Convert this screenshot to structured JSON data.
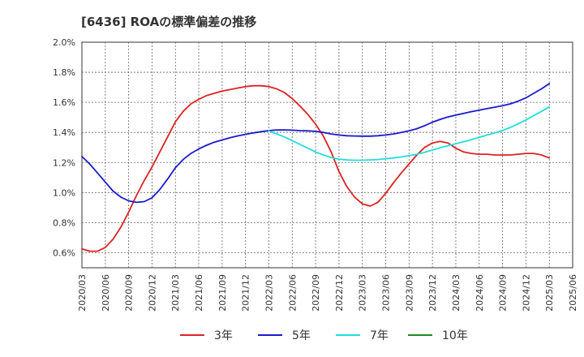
{
  "chart_data": {
    "type": "line",
    "title": "[6436]  ROAの標準偏差の推移",
    "xlabel": "",
    "ylabel": "",
    "ylim": [
      0.5,
      2.0
    ],
    "y_ticks": [
      0.6,
      0.8,
      1.0,
      1.2,
      1.4,
      1.6,
      1.8,
      2.0
    ],
    "y_tick_labels": [
      "0.6%",
      "0.8%",
      "1.0%",
      "1.2%",
      "1.4%",
      "1.6%",
      "1.8%",
      "2.0%"
    ],
    "x_ticks": [
      "2020/03",
      "2020/06",
      "2020/09",
      "2020/12",
      "2021/03",
      "2021/06",
      "2021/09",
      "2021/12",
      "2022/03",
      "2022/06",
      "2022/09",
      "2022/12",
      "2023/03",
      "2023/06",
      "2023/09",
      "2023/12",
      "2024/03",
      "2024/06",
      "2024/09",
      "2024/12",
      "2025/03",
      "2025/06"
    ],
    "grid": true,
    "legend_position": "bottom",
    "series": [
      {
        "name": "3年",
        "color": "#dd2222",
        "points": [
          [
            "2020/03",
            0.625
          ],
          [
            "2020/04",
            0.61
          ],
          [
            "2020/05",
            0.61
          ],
          [
            "2020/06",
            0.635
          ],
          [
            "2020/07",
            0.69
          ],
          [
            "2020/08",
            0.77
          ],
          [
            "2020/09",
            0.87
          ],
          [
            "2020/10",
            0.98
          ],
          [
            "2020/11",
            1.08
          ],
          [
            "2020/12",
            1.17
          ],
          [
            "2021/01",
            1.27
          ],
          [
            "2021/02",
            1.37
          ],
          [
            "2021/03",
            1.47
          ],
          [
            "2021/04",
            1.54
          ],
          [
            "2021/05",
            1.59
          ],
          [
            "2021/06",
            1.62
          ],
          [
            "2021/07",
            1.645
          ],
          [
            "2021/08",
            1.66
          ],
          [
            "2021/09",
            1.675
          ],
          [
            "2021/10",
            1.685
          ],
          [
            "2021/11",
            1.695
          ],
          [
            "2021/12",
            1.705
          ],
          [
            "2022/01",
            1.71
          ],
          [
            "2022/02",
            1.71
          ],
          [
            "2022/03",
            1.705
          ],
          [
            "2022/04",
            1.69
          ],
          [
            "2022/05",
            1.665
          ],
          [
            "2022/06",
            1.625
          ],
          [
            "2022/07",
            1.575
          ],
          [
            "2022/08",
            1.52
          ],
          [
            "2022/09",
            1.455
          ],
          [
            "2022/10",
            1.375
          ],
          [
            "2022/11",
            1.27
          ],
          [
            "2022/12",
            1.14
          ],
          [
            "2023/01",
            1.04
          ],
          [
            "2023/02",
            0.97
          ],
          [
            "2023/03",
            0.925
          ],
          [
            "2023/04",
            0.91
          ],
          [
            "2023/05",
            0.935
          ],
          [
            "2023/06",
            0.995
          ],
          [
            "2023/07",
            1.065
          ],
          [
            "2023/08",
            1.13
          ],
          [
            "2023/09",
            1.19
          ],
          [
            "2023/10",
            1.25
          ],
          [
            "2023/11",
            1.3
          ],
          [
            "2023/12",
            1.33
          ],
          [
            "2024/01",
            1.34
          ],
          [
            "2024/02",
            1.33
          ],
          [
            "2024/03",
            1.295
          ],
          [
            "2024/04",
            1.27
          ],
          [
            "2024/05",
            1.26
          ],
          [
            "2024/06",
            1.255
          ],
          [
            "2024/07",
            1.255
          ],
          [
            "2024/08",
            1.25
          ],
          [
            "2024/09",
            1.25
          ],
          [
            "2024/10",
            1.25
          ],
          [
            "2024/11",
            1.255
          ],
          [
            "2024/12",
            1.26
          ],
          [
            "2025/01",
            1.26
          ],
          [
            "2025/02",
            1.25
          ],
          [
            "2025/03",
            1.23
          ]
        ]
      },
      {
        "name": "5年",
        "color": "#1a1acc",
        "points": [
          [
            "2020/03",
            1.24
          ],
          [
            "2020/04",
            1.19
          ],
          [
            "2020/05",
            1.13
          ],
          [
            "2020/06",
            1.07
          ],
          [
            "2020/07",
            1.01
          ],
          [
            "2020/08",
            0.97
          ],
          [
            "2020/09",
            0.945
          ],
          [
            "2020/10",
            0.935
          ],
          [
            "2020/11",
            0.94
          ],
          [
            "2020/12",
            0.965
          ],
          [
            "2021/01",
            1.02
          ],
          [
            "2021/02",
            1.09
          ],
          [
            "2021/03",
            1.165
          ],
          [
            "2021/04",
            1.22
          ],
          [
            "2021/05",
            1.26
          ],
          [
            "2021/06",
            1.29
          ],
          [
            "2021/07",
            1.315
          ],
          [
            "2021/08",
            1.335
          ],
          [
            "2021/09",
            1.35
          ],
          [
            "2021/10",
            1.365
          ],
          [
            "2021/11",
            1.377
          ],
          [
            "2021/12",
            1.387
          ],
          [
            "2022/01",
            1.397
          ],
          [
            "2022/02",
            1.405
          ],
          [
            "2022/03",
            1.412
          ],
          [
            "2022/04",
            1.416
          ],
          [
            "2022/05",
            1.416
          ],
          [
            "2022/06",
            1.415
          ],
          [
            "2022/07",
            1.412
          ],
          [
            "2022/08",
            1.41
          ],
          [
            "2022/09",
            1.407
          ],
          [
            "2022/10",
            1.4
          ],
          [
            "2022/11",
            1.39
          ],
          [
            "2022/12",
            1.383
          ],
          [
            "2023/01",
            1.378
          ],
          [
            "2023/02",
            1.376
          ],
          [
            "2023/03",
            1.375
          ],
          [
            "2023/04",
            1.375
          ],
          [
            "2023/05",
            1.378
          ],
          [
            "2023/06",
            1.383
          ],
          [
            "2023/07",
            1.39
          ],
          [
            "2023/08",
            1.4
          ],
          [
            "2023/09",
            1.41
          ],
          [
            "2023/10",
            1.425
          ],
          [
            "2023/11",
            1.445
          ],
          [
            "2023/12",
            1.468
          ],
          [
            "2024/01",
            1.487
          ],
          [
            "2024/02",
            1.503
          ],
          [
            "2024/03",
            1.515
          ],
          [
            "2024/04",
            1.527
          ],
          [
            "2024/05",
            1.538
          ],
          [
            "2024/06",
            1.548
          ],
          [
            "2024/07",
            1.558
          ],
          [
            "2024/08",
            1.568
          ],
          [
            "2024/09",
            1.578
          ],
          [
            "2024/10",
            1.59
          ],
          [
            "2024/11",
            1.608
          ],
          [
            "2024/12",
            1.63
          ],
          [
            "2025/01",
            1.66
          ],
          [
            "2025/02",
            1.69
          ],
          [
            "2025/03",
            1.725
          ]
        ]
      },
      {
        "name": "7年",
        "color": "#22dddd",
        "points": [
          [
            "2022/03",
            1.41
          ],
          [
            "2022/04",
            1.39
          ],
          [
            "2022/05",
            1.37
          ],
          [
            "2022/06",
            1.345
          ],
          [
            "2022/07",
            1.32
          ],
          [
            "2022/08",
            1.295
          ],
          [
            "2022/09",
            1.27
          ],
          [
            "2022/10",
            1.25
          ],
          [
            "2022/11",
            1.233
          ],
          [
            "2022/12",
            1.222
          ],
          [
            "2023/01",
            1.217
          ],
          [
            "2023/02",
            1.215
          ],
          [
            "2023/03",
            1.215
          ],
          [
            "2023/04",
            1.217
          ],
          [
            "2023/05",
            1.22
          ],
          [
            "2023/06",
            1.225
          ],
          [
            "2023/07",
            1.23
          ],
          [
            "2023/08",
            1.237
          ],
          [
            "2023/09",
            1.245
          ],
          [
            "2023/10",
            1.255
          ],
          [
            "2023/11",
            1.268
          ],
          [
            "2023/12",
            1.283
          ],
          [
            "2024/01",
            1.298
          ],
          [
            "2024/02",
            1.312
          ],
          [
            "2024/03",
            1.325
          ],
          [
            "2024/04",
            1.338
          ],
          [
            "2024/05",
            1.352
          ],
          [
            "2024/06",
            1.367
          ],
          [
            "2024/07",
            1.382
          ],
          [
            "2024/08",
            1.397
          ],
          [
            "2024/09",
            1.413
          ],
          [
            "2024/10",
            1.433
          ],
          [
            "2024/11",
            1.457
          ],
          [
            "2024/12",
            1.483
          ],
          [
            "2025/01",
            1.512
          ],
          [
            "2025/02",
            1.54
          ],
          [
            "2025/03",
            1.57
          ]
        ]
      },
      {
        "name": "10年",
        "color": "#228822",
        "points": []
      }
    ]
  },
  "legend": [
    {
      "label": "3年",
      "color": "#dd2222"
    },
    {
      "label": "5年",
      "color": "#1a1acc"
    },
    {
      "label": "7年",
      "color": "#22dddd"
    },
    {
      "label": "10年",
      "color": "#228822"
    }
  ]
}
